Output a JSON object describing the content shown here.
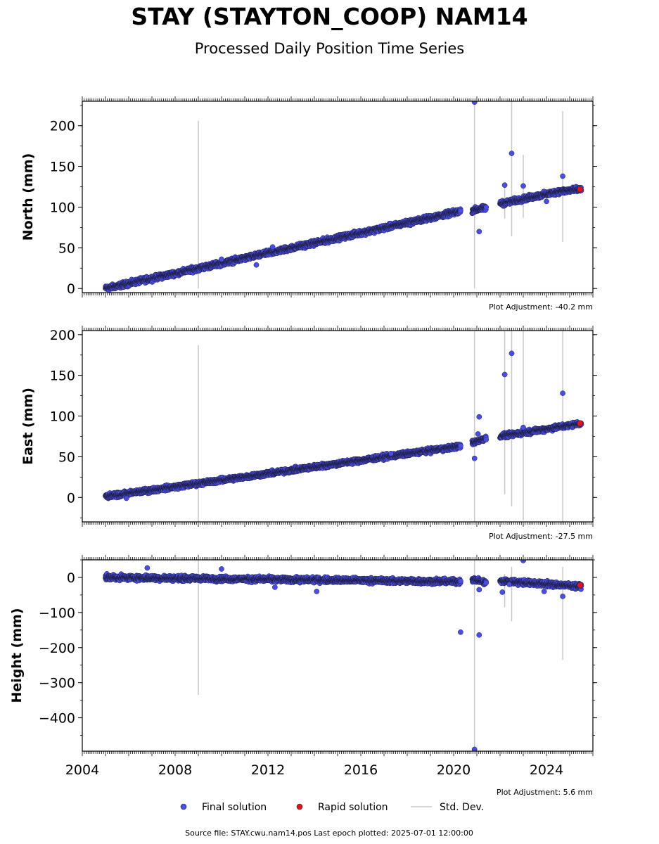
{
  "title": "STAY (STAYTON_COOP) NAM14",
  "subtitle": "Processed Daily Position Time Series",
  "source_line": "Source file: STAY.cwu.nam14.pos  Last epoch plotted: 2025-07-01 12:00:00",
  "legend": {
    "final": "Final solution",
    "rapid": "Rapid solution",
    "stddev": "Std. Dev."
  },
  "colors": {
    "final": "#4a4ee6",
    "rapid": "#e0141a",
    "stddev": "#c8c8c8",
    "marker_edge": "#1c1c3c"
  },
  "chart_data": [
    {
      "type": "scatter",
      "ylabel": "North (mm)",
      "adjustment": "Plot Adjustment: -40.2 mm",
      "xlim": [
        2004.0,
        2026.0
      ],
      "ylim": [
        -5,
        230
      ],
      "yticks": [
        0,
        50,
        100,
        150,
        200
      ],
      "trend": [
        {
          "x": [
            2005.0,
            2020.3
          ],
          "y": [
            0,
            95
          ]
        },
        {
          "x": [
            2020.8,
            2021.4
          ],
          "y": [
            96,
            99
          ]
        },
        {
          "x": [
            2022.0,
            2024.5
          ],
          "y": [
            104,
            119
          ]
        },
        {
          "x": [
            2024.5,
            2025.5
          ],
          "y": [
            119,
            122
          ]
        }
      ],
      "outliers": [
        {
          "x": 2010.0,
          "y": 36
        },
        {
          "x": 2011.5,
          "y": 29
        },
        {
          "x": 2012.2,
          "y": 51
        },
        {
          "x": 2020.9,
          "y": 229
        },
        {
          "x": 2021.1,
          "y": 70
        },
        {
          "x": 2022.2,
          "y": 127
        },
        {
          "x": 2022.5,
          "y": 166
        },
        {
          "x": 2023.0,
          "y": 126
        },
        {
          "x": 2024.0,
          "y": 107
        },
        {
          "x": 2024.7,
          "y": 138
        }
      ],
      "stddev_bars": [
        {
          "x": 2009.0,
          "low": 0,
          "high": 206
        },
        {
          "x": 2020.9,
          "low": 0,
          "high": 230
        },
        {
          "x": 2022.2,
          "low": 86,
          "high": 128
        },
        {
          "x": 2022.5,
          "low": 64,
          "high": 230
        },
        {
          "x": 2023.0,
          "low": 87,
          "high": 164
        },
        {
          "x": 2024.7,
          "low": 57,
          "high": 218
        }
      ],
      "rapid": [
        {
          "x": 2025.45,
          "y": 122
        }
      ]
    },
    {
      "type": "scatter",
      "ylabel": "East (mm)",
      "adjustment": "Plot Adjustment: -27.5 mm",
      "xlim": [
        2004.0,
        2026.0
      ],
      "ylim": [
        -30,
        205
      ],
      "yticks": [
        0,
        50,
        100,
        150,
        200
      ],
      "trend": [
        {
          "x": [
            2005.0,
            2020.3
          ],
          "y": [
            1,
            63
          ]
        },
        {
          "x": [
            2020.8,
            2021.4
          ],
          "y": [
            67,
            73
          ]
        },
        {
          "x": [
            2022.0,
            2025.5
          ],
          "y": [
            75,
            91
          ]
        }
      ],
      "outliers": [
        {
          "x": 2005.9,
          "y": -1
        },
        {
          "x": 2017.3,
          "y": 54
        },
        {
          "x": 2020.9,
          "y": 48
        },
        {
          "x": 2021.1,
          "y": 99
        },
        {
          "x": 2021.05,
          "y": 78
        },
        {
          "x": 2022.2,
          "y": 151
        },
        {
          "x": 2022.5,
          "y": 177
        },
        {
          "x": 2023.0,
          "y": 86
        },
        {
          "x": 2024.7,
          "y": 128
        }
      ],
      "stddev_bars": [
        {
          "x": 2009.0,
          "low": -30,
          "high": 187
        },
        {
          "x": 2020.9,
          "low": -30,
          "high": 205
        },
        {
          "x": 2022.2,
          "low": 4,
          "high": 205
        },
        {
          "x": 2022.5,
          "low": -11,
          "high": 205
        },
        {
          "x": 2023.0,
          "low": -28,
          "high": 205
        },
        {
          "x": 2024.7,
          "low": -30,
          "high": 205
        }
      ],
      "rapid": [
        {
          "x": 2025.45,
          "y": 91
        }
      ]
    },
    {
      "type": "scatter",
      "ylabel": "Height (mm)",
      "adjustment": "Plot Adjustment: 5.6 mm",
      "xlim": [
        2004.0,
        2026.0
      ],
      "ylim": [
        -495,
        50
      ],
      "yticks": [
        0,
        -100,
        -200,
        -300,
        -400
      ],
      "xticks": [
        2004,
        2008,
        2012,
        2016,
        2020,
        2024
      ],
      "trend": [
        {
          "x": [
            2005.0,
            2020.3
          ],
          "y": [
            0,
            -12
          ]
        },
        {
          "x": [
            2020.8,
            2021.4
          ],
          "y": [
            -5,
            -15
          ]
        },
        {
          "x": [
            2022.0,
            2025.5
          ],
          "y": [
            -10,
            -25
          ]
        }
      ],
      "outliers": [
        {
          "x": 2006.8,
          "y": 27
        },
        {
          "x": 2010.0,
          "y": 24
        },
        {
          "x": 2012.3,
          "y": -28
        },
        {
          "x": 2014.1,
          "y": -40
        },
        {
          "x": 2020.3,
          "y": -156
        },
        {
          "x": 2020.9,
          "y": -490
        },
        {
          "x": 2021.1,
          "y": -164
        },
        {
          "x": 2021.1,
          "y": -35
        },
        {
          "x": 2022.1,
          "y": -42
        },
        {
          "x": 2022.4,
          "y": -20
        },
        {
          "x": 2023.0,
          "y": 48
        },
        {
          "x": 2023.9,
          "y": -40
        },
        {
          "x": 2024.7,
          "y": -54
        }
      ],
      "stddev_bars": [
        {
          "x": 2009.0,
          "low": -335,
          "high": 50
        },
        {
          "x": 2020.9,
          "low": -495,
          "high": 50
        },
        {
          "x": 2022.2,
          "low": -85,
          "high": 10
        },
        {
          "x": 2022.5,
          "low": -125,
          "high": 30
        },
        {
          "x": 2024.7,
          "low": -235,
          "high": 30
        }
      ],
      "rapid": [
        {
          "x": 2025.45,
          "y": -22
        }
      ]
    }
  ]
}
